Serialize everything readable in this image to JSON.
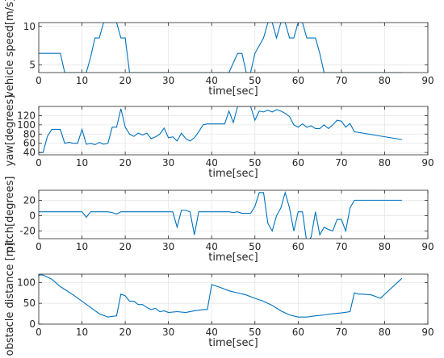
{
  "chart_data": [
    {
      "type": "line",
      "xlabel": "time[sec]",
      "ylabel": "vehicle speed[m/s]",
      "xlim": [
        0,
        90
      ],
      "ylim": [
        4,
        10.5
      ],
      "xticks": [
        0,
        10,
        20,
        30,
        40,
        50,
        60,
        70,
        80,
        90
      ],
      "yticks": [
        5,
        10
      ],
      "grid": true,
      "color": "#0072BD",
      "series": [
        {
          "x": [
            0,
            5,
            6,
            11,
            12,
            13,
            14,
            15,
            16,
            17,
            18,
            19,
            20,
            21,
            44,
            46,
            47,
            48,
            49,
            50,
            52,
            53,
            54,
            55,
            56,
            57,
            58,
            59,
            60,
            61,
            62,
            63,
            64,
            65,
            66,
            84
          ],
          "y": [
            6.5,
            6.5,
            4,
            4,
            6,
            8.5,
            8.5,
            10.5,
            10.5,
            10.5,
            10.5,
            8.5,
            8.5,
            4,
            4,
            6.5,
            6.5,
            4,
            4,
            6.5,
            8.5,
            10.5,
            10.5,
            8.5,
            10.5,
            10.5,
            8.5,
            8.5,
            10.5,
            10.5,
            8.5,
            8.5,
            8.5,
            6.5,
            4,
            4
          ]
        }
      ]
    },
    {
      "type": "line",
      "xlabel": "time[sec]",
      "ylabel": "yaw[degrees]",
      "xlim": [
        0,
        90
      ],
      "ylim": [
        35,
        140
      ],
      "xticks": [
        0,
        10,
        20,
        30,
        40,
        50,
        60,
        70,
        80,
        90
      ],
      "yticks": [
        40,
        60,
        80,
        100,
        120
      ],
      "grid": true,
      "color": "#0072BD",
      "series": [
        {
          "x": [
            0,
            1,
            2,
            3,
            4,
            5,
            6,
            7,
            8,
            9,
            10,
            11,
            12,
            13,
            14,
            15,
            16,
            17,
            18,
            19,
            20,
            21,
            22,
            23,
            24,
            25,
            26,
            27,
            28,
            29,
            30,
            31,
            32,
            33,
            34,
            35,
            36,
            37,
            38,
            39,
            40,
            41,
            42,
            43,
            44,
            45,
            46,
            47,
            48,
            49,
            50,
            51,
            52,
            53,
            54,
            55,
            56,
            57,
            58,
            59,
            60,
            61,
            62,
            63,
            64,
            65,
            66,
            67,
            68,
            69,
            70,
            71,
            72,
            73,
            84
          ],
          "y": [
            40,
            40,
            75,
            90,
            90,
            90,
            60,
            62,
            60,
            60,
            90,
            58,
            60,
            57,
            62,
            58,
            60,
            95,
            95,
            135,
            95,
            80,
            75,
            82,
            78,
            82,
            70,
            74,
            80,
            93,
            72,
            74,
            65,
            82,
            70,
            65,
            72,
            85,
            100,
            102,
            102,
            102,
            102,
            102,
            130,
            105,
            140,
            140,
            140,
            140,
            110,
            130,
            128,
            132,
            128,
            133,
            130,
            125,
            118,
            100,
            95,
            102,
            95,
            98,
            92,
            92,
            100,
            92,
            100,
            110,
            108,
            95,
            103,
            85,
            68
          ]
        }
      ]
    },
    {
      "type": "line",
      "xlabel": "time[sec]",
      "ylabel": "pitch[degrees]",
      "xlim": [
        0,
        90
      ],
      "ylim": [
        -30,
        33
      ],
      "xticks": [
        0,
        10,
        20,
        30,
        40,
        50,
        60,
        70,
        80,
        90
      ],
      "yticks": [
        -20,
        0,
        20
      ],
      "grid": true,
      "color": "#0072BD",
      "series": [
        {
          "x": [
            0,
            1,
            9,
            10,
            11,
            12,
            13,
            16,
            17,
            18,
            19,
            20,
            21,
            22,
            23,
            24,
            31,
            32,
            33,
            34,
            35,
            36,
            37,
            38,
            44,
            45,
            46,
            47,
            48,
            49,
            50,
            51,
            52,
            53,
            54,
            55,
            56,
            57,
            58,
            59,
            60,
            61,
            62,
            63,
            64,
            65,
            66,
            67,
            68,
            69,
            70,
            71,
            72,
            73,
            84
          ],
          "y": [
            5,
            5,
            5,
            5,
            -2,
            5,
            5,
            5,
            4,
            2,
            5,
            5,
            5,
            5,
            5,
            5,
            5,
            -15,
            7,
            7,
            5,
            -25,
            5,
            5,
            5,
            4,
            5,
            3,
            3,
            3,
            12,
            30,
            30,
            -10,
            -20,
            0,
            10,
            30,
            10,
            -20,
            5,
            5,
            -35,
            -28,
            5,
            -25,
            -15,
            -18,
            -20,
            -5,
            -5,
            -20,
            10,
            20,
            20
          ]
        }
      ]
    },
    {
      "type": "line",
      "xlabel": "time[sec]",
      "ylabel": "obstacle distance [m]",
      "xlim": [
        0,
        90
      ],
      "ylim": [
        0,
        120
      ],
      "xticks": [
        0,
        10,
        20,
        30,
        40,
        50,
        60,
        70,
        80,
        90
      ],
      "yticks": [
        0,
        50,
        100
      ],
      "grid": true,
      "color": "#0072BD",
      "series": [
        {
          "x": [
            0,
            1,
            3,
            5,
            8,
            10,
            12,
            14,
            16,
            18,
            19,
            20,
            21,
            22,
            23,
            24,
            25,
            26,
            27,
            28,
            29,
            30,
            32,
            34,
            36,
            38,
            39,
            40,
            42,
            44,
            46,
            48,
            50,
            52,
            54,
            56,
            58,
            60,
            62,
            64,
            66,
            68,
            70,
            72,
            73,
            74,
            75,
            77,
            79,
            84
          ],
          "y": [
            118,
            118,
            108,
            90,
            70,
            55,
            40,
            25,
            17,
            20,
            72,
            68,
            55,
            55,
            47,
            47,
            40,
            35,
            38,
            30,
            32,
            28,
            30,
            28,
            32,
            35,
            35,
            95,
            88,
            80,
            75,
            70,
            62,
            55,
            45,
            32,
            22,
            17,
            17,
            20,
            22,
            25,
            27,
            30,
            75,
            72,
            72,
            70,
            62,
            110
          ]
        }
      ]
    }
  ]
}
